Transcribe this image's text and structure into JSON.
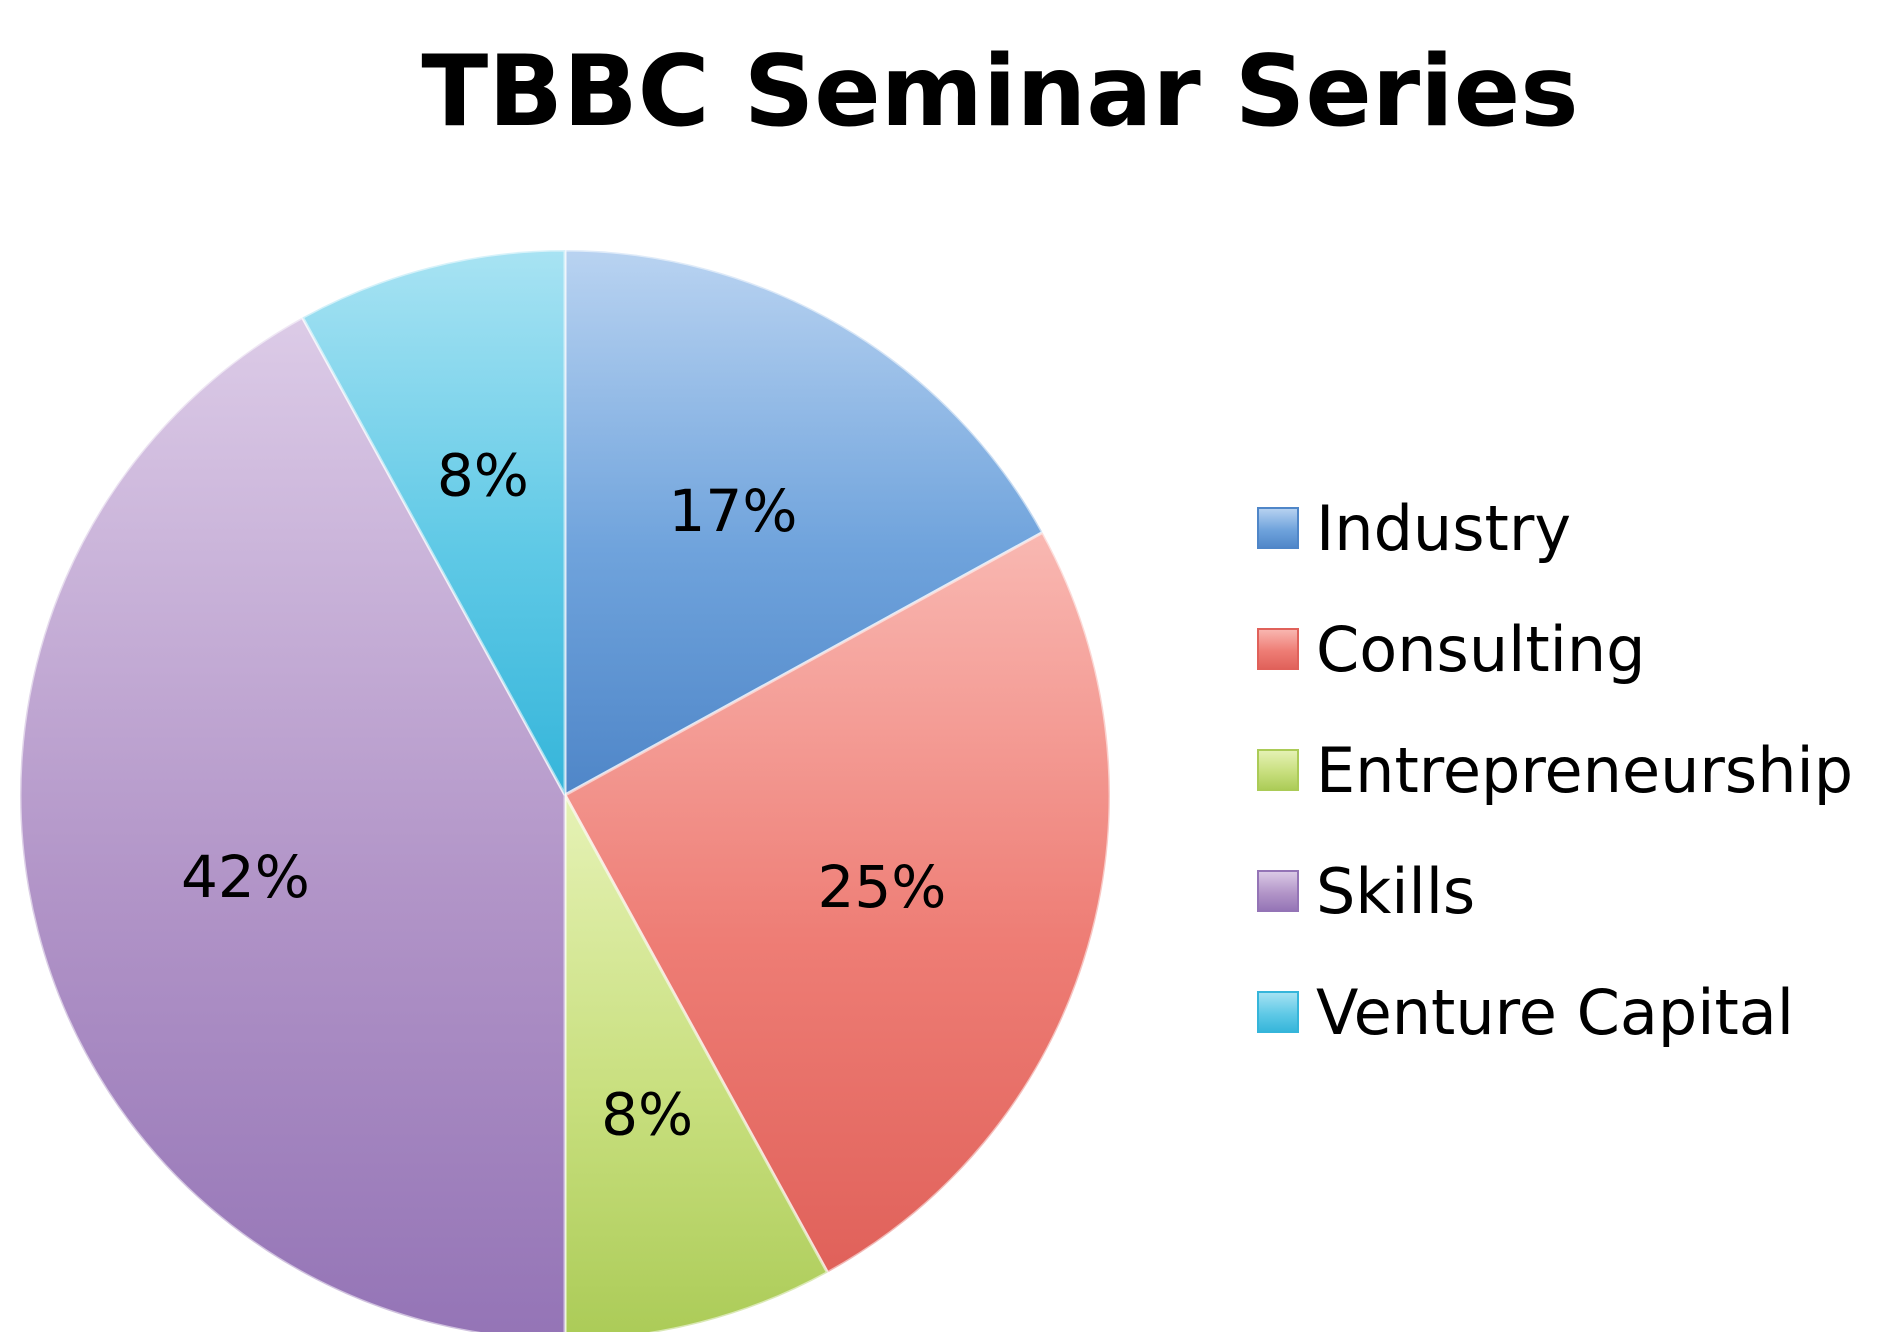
{
  "chart_data": {
    "type": "pie",
    "title": "TBBC Seminar Series",
    "start_angle_deg": 0,
    "direction": "clockwise",
    "legend_position": "right",
    "slices": [
      {
        "name": "Industry",
        "value": 17,
        "label": "17%",
        "color": "#6fa3dc",
        "color_light": "#b9d3f1",
        "color_dark": "#4f86c8"
      },
      {
        "name": "Consulting",
        "value": 25,
        "label": "25%",
        "color": "#ee7d75",
        "color_light": "#f9b8b2",
        "color_dark": "#e0615a"
      },
      {
        "name": "Entrepreneurship",
        "value": 8,
        "label": "8%",
        "color": "#c8df7e",
        "color_light": "#e6f2b6",
        "color_dark": "#abcb57"
      },
      {
        "name": "Skills",
        "value": 42,
        "label": "42%",
        "color": "#b295c8",
        "color_light": "#dccbe7",
        "color_dark": "#9474b6"
      },
      {
        "name": "Venture Capital",
        "value": 8,
        "label": "8%",
        "color": "#5fc9e6",
        "color_light": "#a8e3f3",
        "color_dark": "#35b5da"
      }
    ]
  }
}
